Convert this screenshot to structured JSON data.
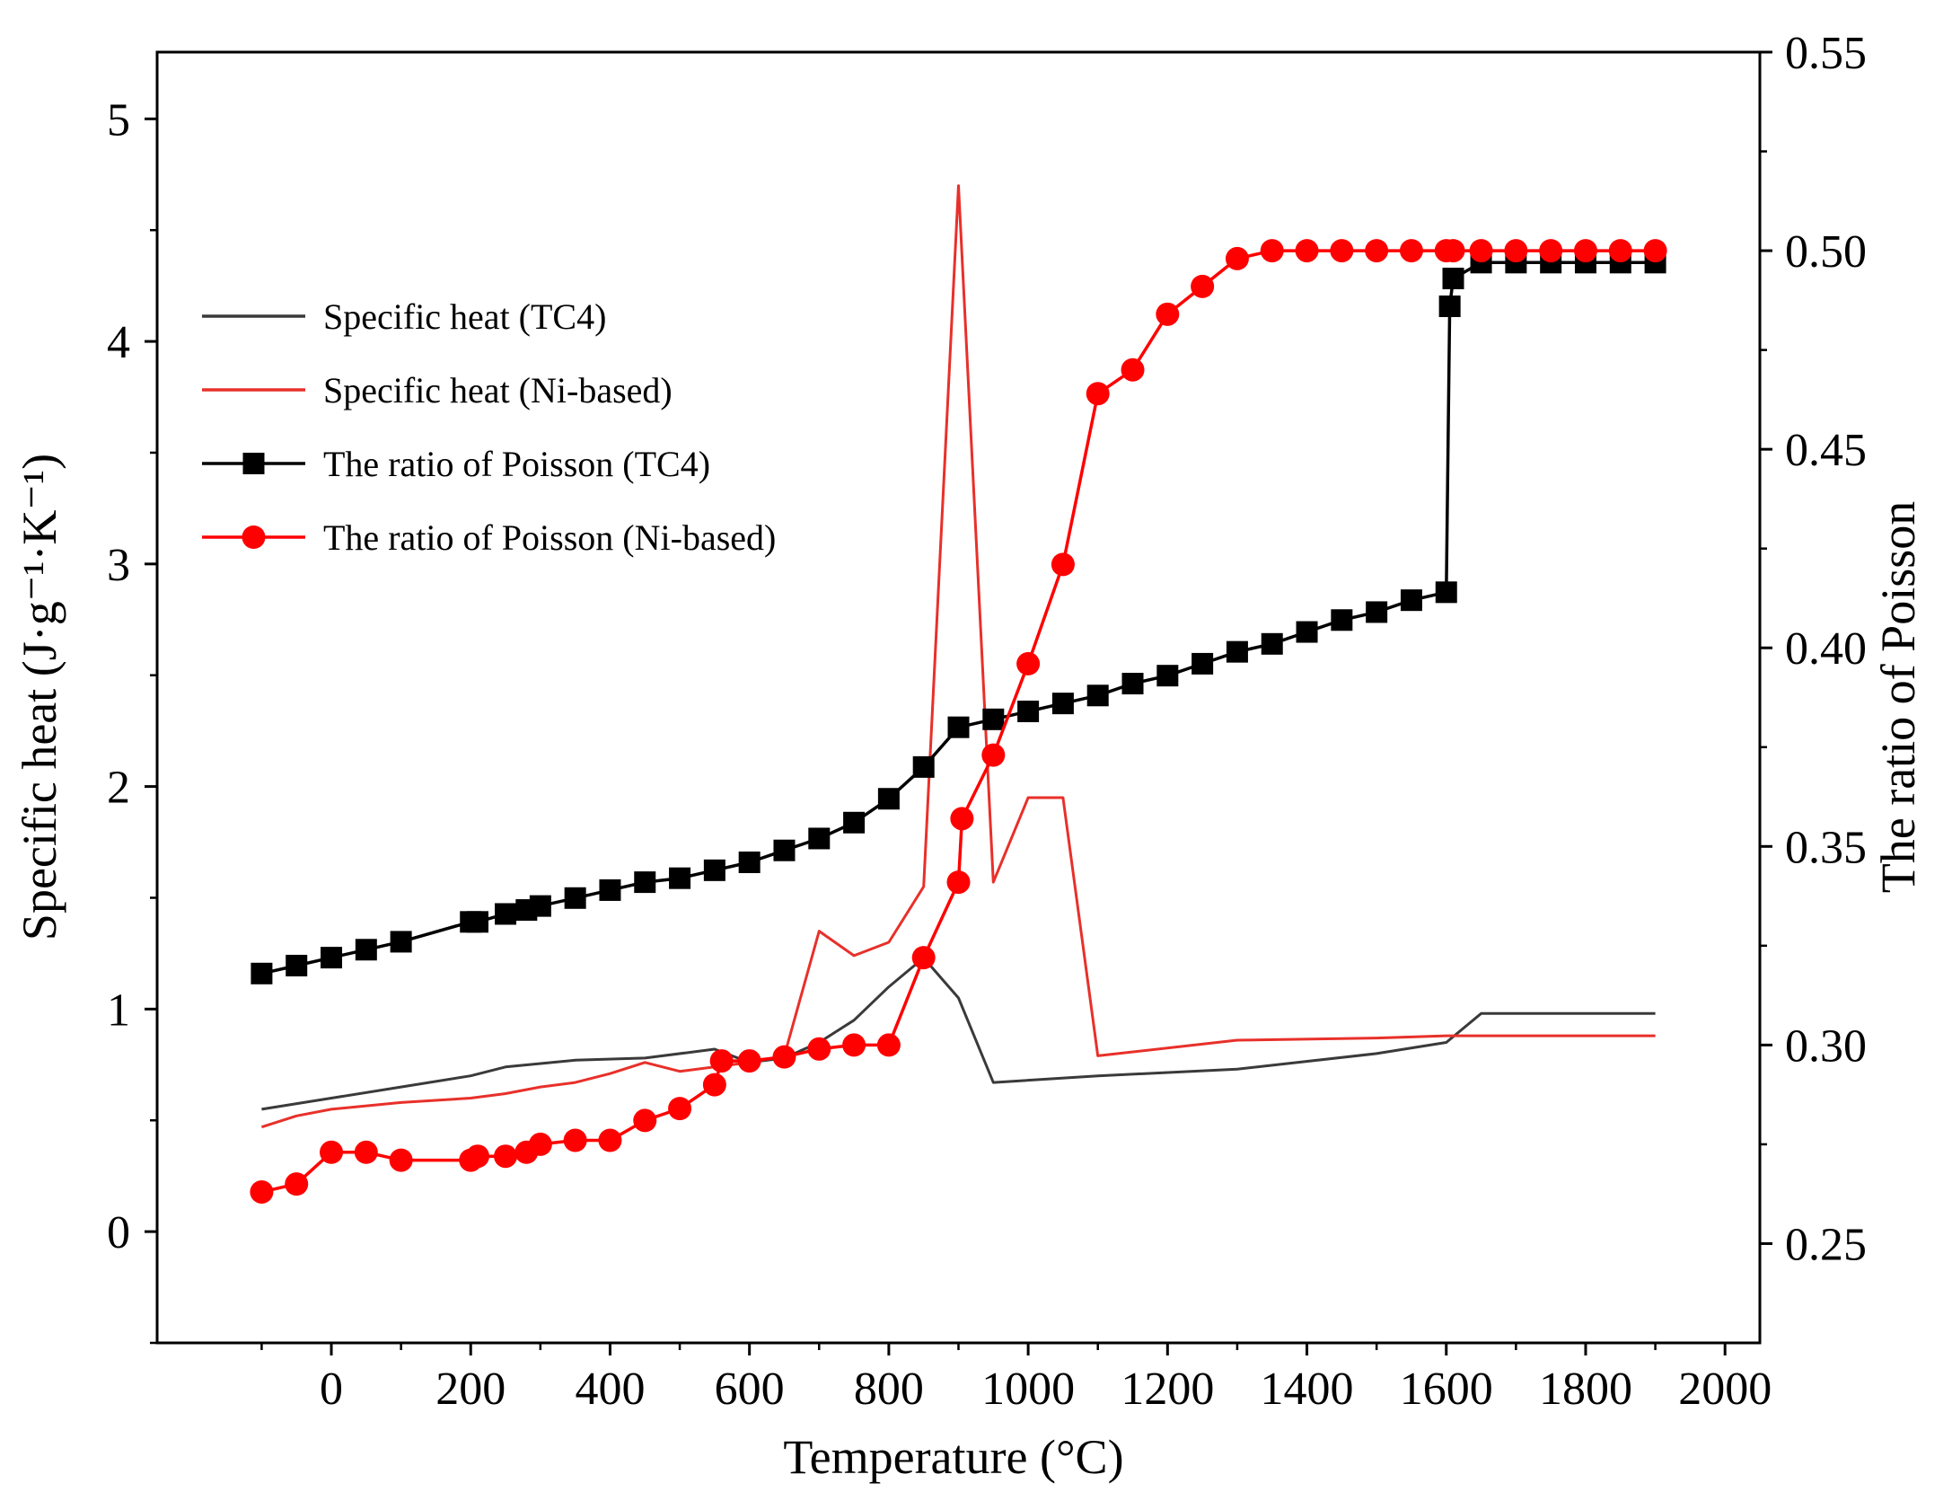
{
  "chart_data": {
    "type": "line",
    "xlabel": "Temperature (°C)",
    "ylabel_left": "Specific heat (J·g⁻¹·K⁻¹)",
    "ylabel_right": "The ratio of Poisson",
    "xlim": [
      -250,
      2050
    ],
    "ylim_left": [
      -0.5,
      5.3
    ],
    "ylim_right": [
      0.225,
      0.55
    ],
    "x_ticks": [
      0,
      200,
      400,
      600,
      800,
      1000,
      1200,
      1400,
      1600,
      1800,
      2000
    ],
    "y_left_ticks": [
      0,
      1,
      2,
      3,
      4,
      5
    ],
    "y_right_ticks": [
      "0.25",
      "0.30",
      "0.35",
      "0.40",
      "0.45",
      "0.50",
      "0.55"
    ],
    "legend_position": "upper-left",
    "series": [
      {
        "name": "Specific heat (TC4)",
        "axis": "left",
        "color": "#3a3a3a",
        "marker": "none",
        "points": [
          [
            -100,
            0.55
          ],
          [
            0,
            0.6
          ],
          [
            100,
            0.65
          ],
          [
            200,
            0.7
          ],
          [
            250,
            0.74
          ],
          [
            350,
            0.77
          ],
          [
            450,
            0.78
          ],
          [
            550,
            0.82
          ],
          [
            600,
            0.76
          ],
          [
            650,
            0.78
          ],
          [
            700,
            0.85
          ],
          [
            750,
            0.95
          ],
          [
            800,
            1.1
          ],
          [
            850,
            1.23
          ],
          [
            900,
            1.05
          ],
          [
            950,
            0.67
          ],
          [
            1100,
            0.7
          ],
          [
            1300,
            0.73
          ],
          [
            1500,
            0.8
          ],
          [
            1600,
            0.85
          ],
          [
            1650,
            0.98
          ],
          [
            1900,
            0.98
          ]
        ]
      },
      {
        "name": "Specific heat (Ni-based)",
        "axis": "left",
        "color": "#e8302a",
        "marker": "none",
        "points": [
          [
            -100,
            0.47
          ],
          [
            -50,
            0.52
          ],
          [
            0,
            0.55
          ],
          [
            100,
            0.58
          ],
          [
            200,
            0.6
          ],
          [
            250,
            0.62
          ],
          [
            300,
            0.65
          ],
          [
            350,
            0.67
          ],
          [
            400,
            0.71
          ],
          [
            450,
            0.76
          ],
          [
            500,
            0.72
          ],
          [
            600,
            0.76
          ],
          [
            650,
            0.79
          ],
          [
            700,
            1.35
          ],
          [
            750,
            1.24
          ],
          [
            800,
            1.3
          ],
          [
            850,
            1.55
          ],
          [
            900,
            4.7
          ],
          [
            950,
            1.57
          ],
          [
            1000,
            1.95
          ],
          [
            1050,
            1.95
          ],
          [
            1100,
            0.79
          ],
          [
            1300,
            0.86
          ],
          [
            1500,
            0.87
          ],
          [
            1600,
            0.88
          ],
          [
            1900,
            0.88
          ]
        ]
      },
      {
        "name": "The ratio of Poisson (TC4)",
        "axis": "right",
        "color": "#000000",
        "marker": "square",
        "points": [
          [
            -100,
            0.318
          ],
          [
            -50,
            0.32
          ],
          [
            0,
            0.322
          ],
          [
            50,
            0.324
          ],
          [
            100,
            0.326
          ],
          [
            200,
            0.331
          ],
          [
            210,
            0.331
          ],
          [
            250,
            0.333
          ],
          [
            280,
            0.334
          ],
          [
            300,
            0.335
          ],
          [
            350,
            0.337
          ],
          [
            400,
            0.339
          ],
          [
            450,
            0.341
          ],
          [
            500,
            0.342
          ],
          [
            550,
            0.344
          ],
          [
            600,
            0.346
          ],
          [
            650,
            0.349
          ],
          [
            700,
            0.352
          ],
          [
            750,
            0.356
          ],
          [
            800,
            0.362
          ],
          [
            850,
            0.37
          ],
          [
            900,
            0.38
          ],
          [
            950,
            0.382
          ],
          [
            1000,
            0.384
          ],
          [
            1050,
            0.386
          ],
          [
            1100,
            0.388
          ],
          [
            1150,
            0.391
          ],
          [
            1200,
            0.393
          ],
          [
            1250,
            0.396
          ],
          [
            1300,
            0.399
          ],
          [
            1350,
            0.401
          ],
          [
            1400,
            0.404
          ],
          [
            1450,
            0.407
          ],
          [
            1500,
            0.409
          ],
          [
            1550,
            0.412
          ],
          [
            1600,
            0.414
          ],
          [
            1605,
            0.486
          ],
          [
            1610,
            0.493
          ],
          [
            1650,
            0.497
          ],
          [
            1700,
            0.497
          ],
          [
            1750,
            0.497
          ],
          [
            1800,
            0.497
          ],
          [
            1850,
            0.497
          ],
          [
            1900,
            0.497
          ]
        ]
      },
      {
        "name": "The ratio of Poisson (Ni-based)",
        "axis": "right",
        "color": "#ff0000",
        "marker": "circle",
        "points": [
          [
            -100,
            0.263
          ],
          [
            -50,
            0.265
          ],
          [
            0,
            0.273
          ],
          [
            50,
            0.273
          ],
          [
            100,
            0.271
          ],
          [
            200,
            0.271
          ],
          [
            210,
            0.272
          ],
          [
            250,
            0.272
          ],
          [
            280,
            0.273
          ],
          [
            300,
            0.275
          ],
          [
            350,
            0.276
          ],
          [
            400,
            0.276
          ],
          [
            450,
            0.281
          ],
          [
            500,
            0.284
          ],
          [
            550,
            0.29
          ],
          [
            560,
            0.296
          ],
          [
            600,
            0.296
          ],
          [
            650,
            0.297
          ],
          [
            700,
            0.299
          ],
          [
            750,
            0.3
          ],
          [
            800,
            0.3
          ],
          [
            850,
            0.322
          ],
          [
            900,
            0.341
          ],
          [
            905,
            0.357
          ],
          [
            950,
            0.373
          ],
          [
            1000,
            0.396
          ],
          [
            1050,
            0.421
          ],
          [
            1100,
            0.464
          ],
          [
            1150,
            0.47
          ],
          [
            1200,
            0.484
          ],
          [
            1250,
            0.491
          ],
          [
            1300,
            0.498
          ],
          [
            1350,
            0.5
          ],
          [
            1400,
            0.5
          ],
          [
            1450,
            0.5
          ],
          [
            1500,
            0.5
          ],
          [
            1550,
            0.5
          ],
          [
            1600,
            0.5
          ],
          [
            1610,
            0.5
          ],
          [
            1650,
            0.5
          ],
          [
            1700,
            0.5
          ],
          [
            1750,
            0.5
          ],
          [
            1800,
            0.5
          ],
          [
            1850,
            0.5
          ],
          [
            1900,
            0.5
          ]
        ]
      }
    ]
  }
}
